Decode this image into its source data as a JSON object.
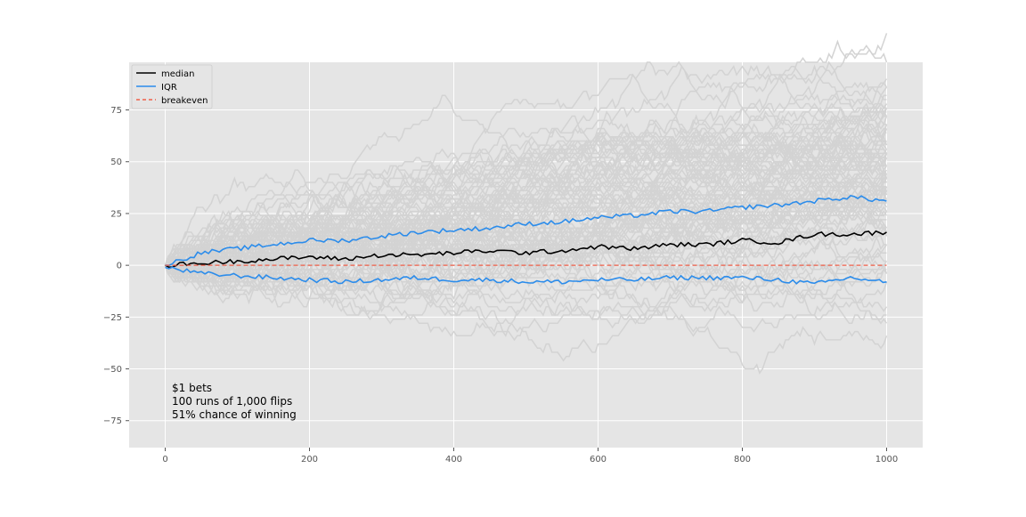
{
  "chart_data": {
    "type": "line",
    "title": "",
    "xlabel": "",
    "ylabel": "",
    "xlim": [
      -50,
      1050
    ],
    "ylim": [
      -88,
      98
    ],
    "x_ticks": [
      0,
      200,
      400,
      600,
      800,
      1000
    ],
    "y_ticks": [
      -75,
      -50,
      -25,
      0,
      25,
      50,
      75
    ],
    "x_tick_labels": [
      "0",
      "200",
      "400",
      "600",
      "800",
      "1000"
    ],
    "y_tick_labels": [
      "−75",
      "−50",
      "−25",
      "0",
      "25",
      "50",
      "75"
    ],
    "grid": true,
    "background": "#e5e5e5",
    "legend_position": "top-left",
    "legend": [
      {
        "label": "median",
        "color": "#000000",
        "style": "solid"
      },
      {
        "label": "IQR",
        "color": "#2b8ceb",
        "style": "solid"
      },
      {
        "label": "breakeven",
        "color": "#f0604a",
        "style": "dashed"
      }
    ],
    "annotation_lines": [
      "$1 bets",
      "100 runs of 1,000 flips",
      "51% chance of winning"
    ],
    "runs": {
      "count": 100,
      "flips": 1000,
      "win_probability": 0.51,
      "color": "#d3d3d3"
    },
    "series": [
      {
        "name": "median",
        "color": "#000000",
        "x": [
          0,
          50,
          100,
          150,
          200,
          250,
          300,
          350,
          400,
          450,
          500,
          550,
          600,
          650,
          700,
          750,
          800,
          850,
          900,
          950,
          1000
        ],
        "y": [
          0,
          1,
          2,
          3,
          4,
          3,
          5,
          5,
          6,
          7,
          6,
          7,
          9,
          8,
          10,
          10,
          12,
          11,
          15,
          15,
          16
        ]
      },
      {
        "name": "IQR upper",
        "color": "#2b8ceb",
        "x": [
          0,
          50,
          100,
          150,
          200,
          250,
          300,
          350,
          400,
          450,
          500,
          550,
          600,
          650,
          700,
          750,
          800,
          850,
          900,
          950,
          1000
        ],
        "y": [
          0,
          6,
          8,
          10,
          12,
          12,
          14,
          16,
          17,
          18,
          20,
          21,
          23,
          24,
          26,
          26,
          28,
          29,
          31,
          33,
          31
        ]
      },
      {
        "name": "IQR lower",
        "color": "#2b8ceb",
        "x": [
          0,
          50,
          100,
          150,
          200,
          250,
          300,
          350,
          400,
          450,
          500,
          550,
          600,
          650,
          700,
          750,
          800,
          850,
          900,
          950,
          1000
        ],
        "y": [
          -1,
          -4,
          -5,
          -6,
          -7,
          -8,
          -7,
          -6,
          -7,
          -7,
          -8,
          -8,
          -7,
          -7,
          -6,
          -6,
          -6,
          -7,
          -9,
          -6,
          -8
        ]
      },
      {
        "name": "breakeven",
        "color": "#f0604a",
        "x": [
          0,
          1000
        ],
        "y": [
          0,
          0
        ]
      }
    ]
  }
}
